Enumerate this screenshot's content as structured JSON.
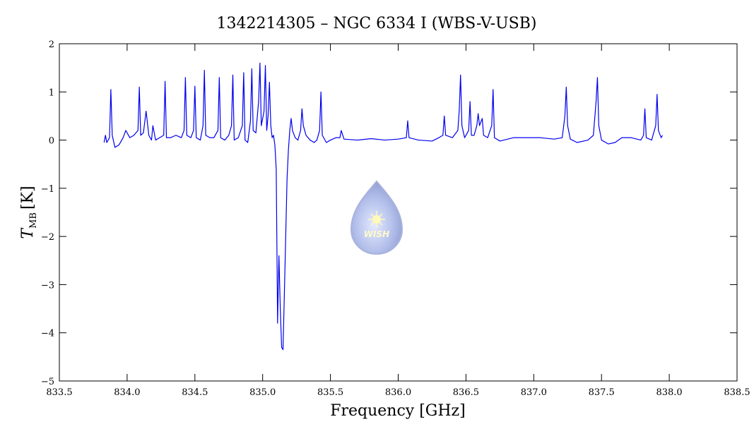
{
  "chart_data": {
    "type": "line",
    "title": "1342214305 – NGC 6334 I (WBS-V-USB)",
    "xlabel": "Frequency [GHz]",
    "ylabel": {
      "symbol": "T",
      "subscript": "MB",
      "unit": "[K]"
    },
    "logo_text": "WISH",
    "xlim": [
      833.5,
      838.5
    ],
    "ylim": [
      -5,
      2
    ],
    "xticks": [
      833.5,
      {
        "value": 834,
        "label": "834.0"
      },
      834.5,
      {
        "value": 835,
        "label": "835.0"
      },
      835.5,
      {
        "value": 836,
        "label": "836.0"
      },
      836.5,
      {
        "value": 837,
        "label": "837.0"
      },
      837.5,
      {
        "value": 838,
        "label": "838.0"
      },
      838.5
    ],
    "yticks": [
      {
        "value": -5,
        "label": "−5"
      },
      {
        "value": -4,
        "label": "−4"
      },
      {
        "value": -3,
        "label": "−3"
      },
      {
        "value": -2,
        "label": "−2"
      },
      {
        "value": -1,
        "label": "−1"
      },
      0,
      1,
      2
    ],
    "x": [
      833.83,
      833.84,
      833.85,
      833.87,
      833.88,
      833.89,
      833.91,
      833.94,
      833.97,
      833.99,
      834.02,
      834.05,
      834.08,
      834.09,
      834.1,
      834.12,
      834.14,
      834.16,
      834.18,
      834.19,
      834.21,
      834.24,
      834.27,
      834.28,
      834.29,
      834.32,
      834.36,
      834.4,
      834.42,
      834.43,
      834.44,
      834.47,
      834.49,
      834.5,
      834.51,
      834.54,
      834.56,
      834.57,
      834.58,
      834.61,
      834.64,
      834.67,
      834.68,
      834.69,
      834.72,
      834.75,
      834.77,
      834.78,
      834.79,
      834.82,
      834.85,
      834.86,
      834.87,
      834.89,
      834.91,
      834.92,
      834.93,
      834.95,
      834.97,
      834.98,
      834.99,
      835.01,
      835.02,
      835.03,
      835.04,
      835.05,
      835.06,
      835.07,
      835.08,
      835.09,
      835.1,
      835.11,
      835.12,
      835.13,
      835.14,
      835.15,
      835.16,
      835.17,
      835.18,
      835.19,
      835.2,
      835.21,
      835.22,
      835.24,
      835.26,
      835.28,
      835.29,
      835.3,
      835.32,
      835.35,
      835.38,
      835.4,
      835.42,
      835.43,
      835.44,
      835.47,
      835.5,
      835.54,
      835.57,
      835.58,
      835.6,
      835.7,
      835.8,
      835.9,
      836.0,
      836.06,
      836.07,
      836.08,
      836.15,
      836.25,
      836.3,
      836.33,
      836.34,
      836.35,
      836.4,
      836.44,
      836.45,
      836.46,
      836.47,
      836.49,
      836.52,
      836.53,
      836.54,
      836.56,
      836.58,
      836.59,
      836.6,
      836.62,
      836.63,
      836.66,
      836.69,
      836.7,
      836.71,
      836.75,
      836.85,
      836.95,
      837.05,
      837.15,
      837.21,
      837.23,
      837.24,
      837.25,
      837.27,
      837.32,
      837.4,
      837.44,
      837.46,
      837.47,
      837.48,
      837.5,
      837.55,
      837.6,
      837.65,
      837.72,
      837.79,
      837.81,
      837.82,
      837.83,
      837.87,
      837.9,
      837.91,
      837.92,
      837.94,
      837.95
    ],
    "series": [
      {
        "color": "#0000ee",
        "values": [
          -0.05,
          0.1,
          -0.05,
          0.05,
          1.05,
          0.1,
          -0.15,
          -0.1,
          0.05,
          0.2,
          0.05,
          0.1,
          0.2,
          1.1,
          0.1,
          0.15,
          0.6,
          0.1,
          0.0,
          0.3,
          0.0,
          0.05,
          0.1,
          1.22,
          0.05,
          0.05,
          0.1,
          0.05,
          0.2,
          1.3,
          0.1,
          0.05,
          0.2,
          1.12,
          0.05,
          0.0,
          0.3,
          1.45,
          0.1,
          0.05,
          0.05,
          0.2,
          1.3,
          0.05,
          0.0,
          0.1,
          0.3,
          1.35,
          0.0,
          0.05,
          0.3,
          1.4,
          0.0,
          -0.05,
          0.4,
          1.48,
          0.2,
          0.15,
          0.8,
          1.6,
          0.3,
          0.6,
          1.55,
          0.2,
          0.5,
          1.2,
          0.3,
          0.05,
          0.1,
          -0.1,
          -0.6,
          -3.8,
          -2.4,
          -3.5,
          -4.3,
          -4.35,
          -3.2,
          -2.0,
          -0.8,
          -0.2,
          0.2,
          0.45,
          0.2,
          0.05,
          0.0,
          0.2,
          0.65,
          0.3,
          0.1,
          0.0,
          -0.05,
          0.0,
          0.2,
          1.0,
          0.1,
          -0.05,
          0.0,
          0.05,
          0.05,
          0.2,
          0.02,
          0.0,
          0.03,
          0.0,
          0.02,
          0.05,
          0.4,
          0.05,
          0.0,
          -0.02,
          0.05,
          0.1,
          0.5,
          0.1,
          0.05,
          0.2,
          0.6,
          1.35,
          0.3,
          0.05,
          0.2,
          0.8,
          0.1,
          0.1,
          0.3,
          0.55,
          0.3,
          0.45,
          0.1,
          0.05,
          0.3,
          1.05,
          0.05,
          -0.02,
          0.05,
          0.05,
          0.05,
          0.02,
          0.05,
          0.5,
          1.1,
          0.3,
          0.02,
          -0.05,
          0.0,
          0.1,
          0.8,
          1.3,
          0.3,
          0.0,
          -0.08,
          -0.05,
          0.05,
          0.05,
          0.0,
          0.1,
          0.65,
          0.05,
          0.0,
          0.3,
          0.95,
          0.2,
          0.05,
          0.1
        ]
      }
    ]
  }
}
